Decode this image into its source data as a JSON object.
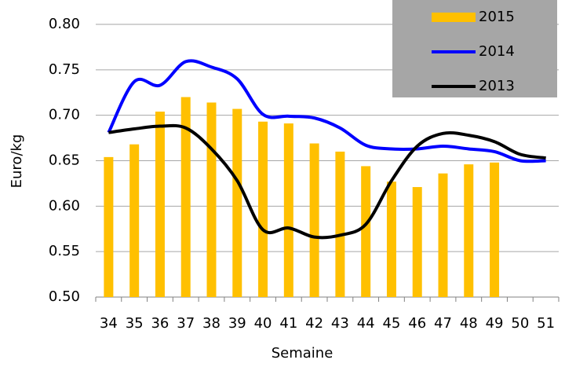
{
  "chart_data": {
    "type": "bar-line",
    "x_label": "Semaine",
    "y_label": "Euro/kg",
    "categories": [
      "34",
      "35",
      "36",
      "37",
      "38",
      "39",
      "40",
      "41",
      "42",
      "43",
      "44",
      "45",
      "46",
      "47",
      "48",
      "49",
      "50",
      "51"
    ],
    "series": [
      {
        "name": "2015",
        "type": "bar",
        "color": "#ffc000",
        "values": [
          0.654,
          0.668,
          0.704,
          0.72,
          0.714,
          0.707,
          0.693,
          0.691,
          0.669,
          0.66,
          0.644,
          0.627,
          0.621,
          0.636,
          0.646,
          0.648,
          null,
          null
        ]
      },
      {
        "name": "2014",
        "type": "line",
        "color": "#0000ff",
        "values": [
          0.681,
          0.737,
          0.733,
          0.759,
          0.753,
          0.74,
          0.701,
          0.699,
          0.697,
          0.686,
          0.667,
          0.663,
          0.663,
          0.666,
          0.663,
          0.66,
          0.65,
          0.65
        ]
      },
      {
        "name": "2013",
        "type": "line",
        "color": "#000000",
        "values": [
          0.681,
          0.685,
          0.688,
          0.686,
          0.663,
          0.628,
          0.574,
          0.576,
          0.566,
          0.568,
          0.58,
          0.628,
          0.666,
          0.68,
          0.678,
          0.671,
          0.657,
          0.653
        ]
      }
    ],
    "ylim": [
      0.5,
      0.8
    ],
    "yticks": [
      {
        "value": 0.5,
        "label": "0.50"
      },
      0.55,
      {
        "value": 0.6,
        "label": "0.60"
      },
      0.65,
      {
        "value": 0.7,
        "label": "0.70"
      },
      0.75,
      {
        "value": 0.8,
        "label": "0.80"
      }
    ],
    "grid": true,
    "legend": "top-right"
  }
}
